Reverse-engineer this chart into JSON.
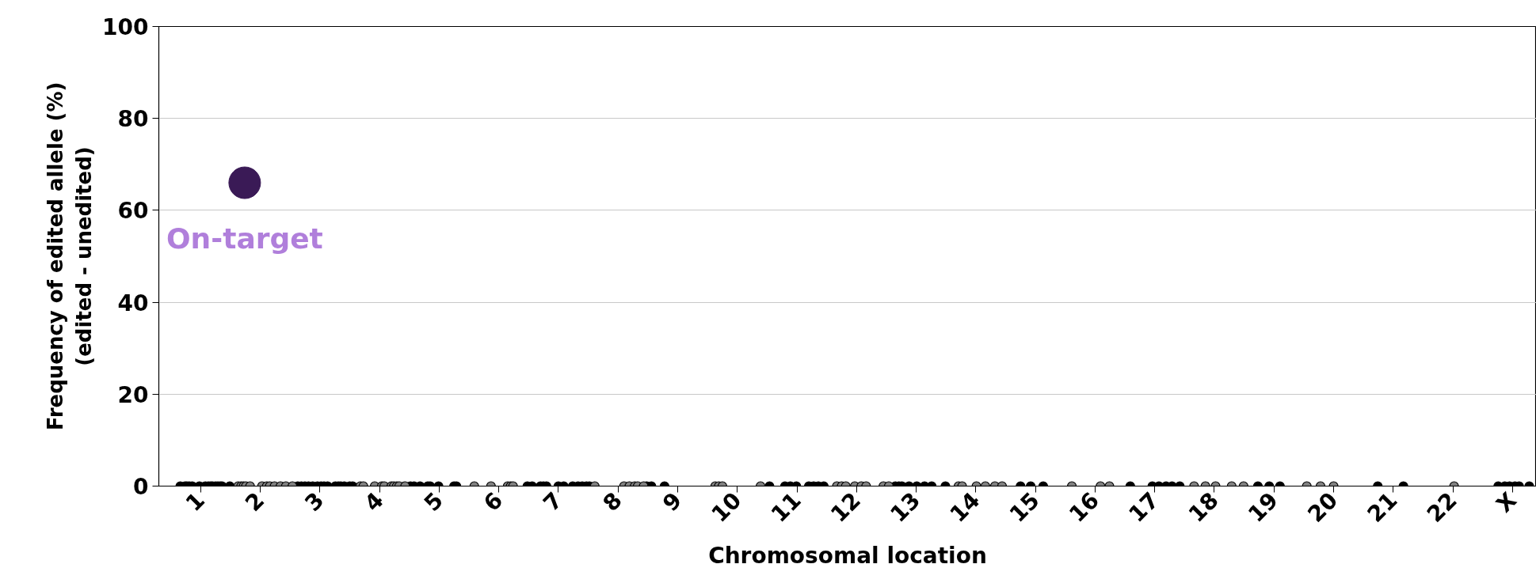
{
  "chart_data": {
    "type": "scatter",
    "xlabel": "Chromosomal location",
    "ylabel": "Frequency of edited allele (%)\n(edited - unedited)",
    "xlim": [
      0.3,
      23.4
    ],
    "ylim": [
      0,
      100
    ],
    "yticks": [
      0,
      20,
      40,
      60,
      80,
      100
    ],
    "xticks": [
      1,
      2,
      3,
      4,
      5,
      6,
      7,
      8,
      9,
      10,
      11,
      12,
      13,
      14,
      15,
      16,
      17,
      18,
      19,
      20,
      21,
      22,
      {
        "value": 23,
        "label": "X"
      }
    ],
    "grid": "y",
    "marker": "circle",
    "annotations": [
      {
        "text": "On-target",
        "x": 1.74,
        "y": 66
      }
    ],
    "series": [
      {
        "color": "#000000",
        "x": [
          0.66,
          0.74,
          0.77,
          0.81,
          0.86,
          0.98,
          1.08,
          1.13,
          1.17,
          1.2,
          1.25,
          1.29,
          1.33,
          1.36,
          1.49,
          2.63,
          2.69,
          2.75,
          2.81,
          2.88,
          2.96,
          3.02,
          3.07,
          3.13,
          3.26,
          3.31,
          3.35,
          3.41,
          3.5,
          3.55,
          4.52,
          4.58,
          4.68,
          4.81,
          4.85,
          4.99,
          5.25,
          5.29,
          6.48,
          6.56,
          6.7,
          6.75,
          6.8,
          7.0,
          7.09,
          7.24,
          7.33,
          7.4,
          7.47,
          7.52,
          8.48,
          8.56,
          8.78,
          10.54,
          10.8,
          10.89,
          10.99,
          11.2,
          11.28,
          11.36,
          11.45,
          12.71,
          12.65,
          12.76,
          12.88,
          13.01,
          13.14,
          13.26,
          13.49,
          14.75,
          14.92,
          15.13,
          16.59,
          16.96,
          17.07,
          17.19,
          17.29,
          17.42,
          18.73,
          18.92,
          19.1,
          20.74,
          21.17,
          22.76,
          22.87,
          22.95,
          23.04,
          23.11,
          23.28
        ],
        "values": [
          0,
          0,
          0,
          0,
          0,
          0,
          0,
          0,
          0,
          0,
          0,
          0,
          0,
          0,
          0,
          0,
          0,
          0,
          0,
          0,
          0,
          0,
          0,
          0,
          0,
          0,
          0,
          0,
          0,
          0,
          0,
          0,
          0,
          0,
          0,
          0,
          0,
          0,
          0,
          0,
          0,
          0,
          0,
          0,
          0,
          0,
          0,
          0,
          0,
          0,
          0,
          0,
          0,
          0,
          0,
          0,
          0,
          0,
          0,
          0,
          0,
          0,
          0,
          0,
          0,
          0,
          0,
          0,
          0,
          0,
          0,
          0,
          0,
          0,
          0,
          0,
          0,
          0,
          0,
          0,
          0,
          0,
          0,
          0,
          0,
          0,
          0,
          0,
          0
        ]
      },
      {
        "color": "#808080",
        "x": [
          1.63,
          1.68,
          1.72,
          1.76,
          1.83,
          2.03,
          2.11,
          2.16,
          2.24,
          2.34,
          2.43,
          2.54,
          3.68,
          3.73,
          3.92,
          4.04,
          4.08,
          4.2,
          4.24,
          4.29,
          4.33,
          4.43,
          5.59,
          5.87,
          6.15,
          6.2,
          6.24,
          7.61,
          8.1,
          8.19,
          8.28,
          8.33,
          8.43,
          9.63,
          9.69,
          9.75,
          10.39,
          11.67,
          11.75,
          11.82,
          11.97,
          12.08,
          12.16,
          12.45,
          12.54,
          13.71,
          13.77,
          14.01,
          14.16,
          14.32,
          14.44,
          15.61,
          16.09,
          16.24,
          17.66,
          17.85,
          18.02,
          18.29,
          18.49,
          19.55,
          19.78,
          20.0,
          22.02
        ],
        "values": [
          0,
          0,
          0,
          0,
          0,
          0,
          0,
          0,
          0,
          0,
          0,
          0,
          0,
          0,
          0,
          0,
          0,
          0,
          0,
          0,
          0,
          0,
          0,
          0,
          0,
          0,
          0,
          0,
          0,
          0,
          0,
          0,
          0,
          0,
          0,
          0,
          0,
          0,
          0,
          0,
          0,
          0,
          0,
          0,
          0,
          0,
          0,
          0,
          0,
          0,
          0,
          0,
          0,
          0,
          0,
          0,
          0,
          0,
          0,
          0,
          0,
          0,
          0
        ]
      },
      {
        "type": "bubble",
        "color": "#3a1a56",
        "x": [
          1.74
        ],
        "values": [
          66
        ],
        "sizes": [
          1
        ]
      }
    ]
  }
}
